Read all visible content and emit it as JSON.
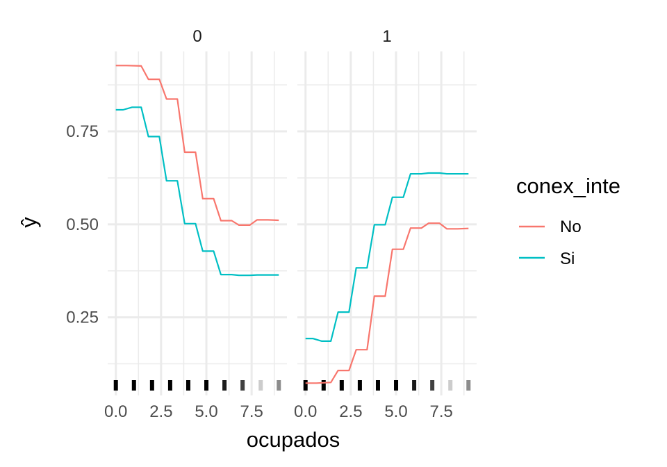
{
  "chart_data": {
    "type": "line",
    "xlabel": "ocupados",
    "ylabel": "ŷ",
    "x_ticks": [
      "0.0",
      "2.5",
      "5.0",
      "7.5"
    ],
    "y_ticks": [
      "0.25",
      "0.50",
      "0.75"
    ],
    "xlim": [
      -0.45,
      9.45
    ],
    "ylim": [
      0.04,
      0.965
    ],
    "legend": {
      "title": "conex_inte",
      "placement": "right"
    },
    "colors": {
      "No": "#F8766D",
      "Si": "#00BFC4"
    },
    "panels": [
      {
        "label": "0",
        "series": [
          {
            "name": "No",
            "x": [
              0,
              0.6,
              1.4,
              1.8,
              2.4,
              2.8,
              3.4,
              3.8,
              4.4,
              4.8,
              5.4,
              5.8,
              6.4,
              6.8,
              7.4,
              7.8,
              8.4,
              9.0
            ],
            "y": [
              0.927,
              0.927,
              0.926,
              0.89,
              0.89,
              0.837,
              0.837,
              0.694,
              0.694,
              0.569,
              0.569,
              0.51,
              0.51,
              0.498,
              0.498,
              0.512,
              0.512,
              0.511
            ]
          },
          {
            "name": "Si",
            "x": [
              0,
              0.4,
              0.9,
              1.4,
              1.8,
              2.4,
              2.8,
              3.4,
              3.8,
              4.4,
              4.8,
              5.4,
              5.8,
              6.4,
              6.8,
              7.4,
              7.8,
              8.4,
              9.0
            ],
            "y": [
              0.808,
              0.808,
              0.815,
              0.815,
              0.736,
              0.736,
              0.617,
              0.617,
              0.502,
              0.502,
              0.428,
              0.428,
              0.365,
              0.365,
              0.363,
              0.363,
              0.364,
              0.364,
              0.364
            ]
          }
        ]
      },
      {
        "label": "1",
        "series": [
          {
            "name": "No",
            "x": [
              0,
              0.6,
              1.4,
              1.8,
              2.4,
              2.8,
              3.4,
              3.8,
              4.4,
              4.8,
              5.4,
              5.8,
              6.4,
              6.8,
              7.4,
              7.8,
              8.4,
              9.0
            ],
            "y": [
              0.073,
              0.073,
              0.075,
              0.107,
              0.107,
              0.163,
              0.163,
              0.307,
              0.307,
              0.433,
              0.433,
              0.49,
              0.49,
              0.503,
              0.503,
              0.488,
              0.488,
              0.489
            ]
          },
          {
            "name": "Si",
            "x": [
              0,
              0.4,
              0.9,
              1.4,
              1.8,
              2.4,
              2.8,
              3.4,
              3.8,
              4.4,
              4.8,
              5.4,
              5.8,
              6.4,
              6.8,
              7.4,
              7.8,
              8.4,
              9.0
            ],
            "y": [
              0.193,
              0.193,
              0.186,
              0.186,
              0.264,
              0.264,
              0.383,
              0.383,
              0.499,
              0.499,
              0.573,
              0.573,
              0.636,
              0.636,
              0.638,
              0.638,
              0.636,
              0.636,
              0.636
            ]
          }
        ]
      }
    ],
    "rug": {
      "x": [
        0,
        1,
        2,
        3,
        4,
        5,
        6,
        7,
        8,
        9
      ],
      "opacity": [
        1,
        1,
        1,
        1,
        1,
        1,
        0.9,
        0.75,
        0.2,
        0.45
      ]
    },
    "grid": true
  }
}
